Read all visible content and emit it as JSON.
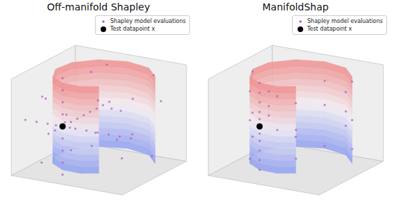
{
  "chart_data": [
    {
      "type": "scatter3d",
      "title": "Off-manifold Shapley",
      "xlim": [
        -1,
        1
      ],
      "ylim": [
        -1,
        1
      ],
      "zlim": [
        -1,
        1
      ],
      "tick_labels": false,
      "legend": "upper right",
      "manifold": {
        "curve": [
          [
            0.25,
            -0.43
          ],
          [
            0,
            -0.58
          ],
          [
            -0.33,
            -0.56
          ],
          [
            -0.62,
            -0.36
          ],
          [
            -0.78,
            0
          ],
          [
            -0.73,
            0.42
          ],
          [
            -0.44,
            0.76
          ],
          [
            0,
            0.9
          ],
          [
            0.45,
            0.78
          ],
          [
            0.76,
            0.44
          ]
        ],
        "height": [
          -0.9,
          0.9
        ],
        "colors": [
          "#8c9cf0",
          "#f2eef2",
          "#ee8c8c"
        ]
      },
      "series": [
        {
          "name": "Shapley model evaluations",
          "color": "#b35cc4",
          "marker": "circle",
          "points": [
            [
              -1,
              -0.56,
              0
            ],
            [
              -0.8,
              -0.56,
              0
            ],
            [
              -0.6,
              -0.56,
              0
            ],
            [
              -0.45,
              -0.56,
              0
            ],
            [
              -0.2,
              -0.56,
              0
            ],
            [
              -0.1,
              -0.56,
              0
            ],
            [
              0.1,
              -0.56,
              0
            ],
            [
              0.3,
              -0.56,
              0
            ],
            [
              0.5,
              -0.56,
              0
            ],
            [
              0.7,
              -0.56,
              0
            ],
            [
              0.9,
              -0.56,
              0
            ],
            [
              -0.33,
              -1,
              0
            ],
            [
              -0.33,
              -0.8,
              0
            ],
            [
              -0.33,
              -0.3,
              0
            ],
            [
              -0.33,
              -0.1,
              0
            ],
            [
              -0.33,
              0.1,
              0
            ],
            [
              -0.33,
              0.3,
              0
            ],
            [
              -0.33,
              0.5,
              0
            ],
            [
              -0.33,
              0.7,
              0
            ],
            [
              -0.33,
              0.9,
              0
            ],
            [
              -0.33,
              -0.56,
              -1
            ],
            [
              -0.33,
              -0.56,
              -0.75
            ],
            [
              -0.33,
              -0.56,
              -0.5
            ],
            [
              -0.33,
              -0.56,
              -0.25
            ],
            [
              -0.33,
              -0.56,
              0.25
            ],
            [
              -0.33,
              -0.56,
              0.5
            ],
            [
              -0.33,
              -0.56,
              0.75
            ],
            [
              -0.33,
              -0.56,
              1
            ],
            [
              0.8,
              -0.7,
              0.6
            ],
            [
              -0.9,
              0.5,
              -0.4
            ],
            [
              0.3,
              0.2,
              -0.8
            ],
            [
              -0.5,
              -0.9,
              0.7
            ],
            [
              0.6,
              0.9,
              0.2
            ],
            [
              -0.2,
              0.6,
              0.9
            ],
            [
              0.9,
              0.1,
              -0.6
            ],
            [
              -0.8,
              -0.4,
              -0.9
            ],
            [
              0.1,
              -0.2,
              0.5
            ],
            [
              0.5,
              -0.3,
              -0.2
            ],
            [
              -0.6,
              0.8,
              0.6
            ],
            [
              0.2,
              0.7,
              -0.5
            ],
            [
              -0.9,
              -0.1,
              0.3
            ],
            [
              0.7,
              0.5,
              0.9
            ],
            [
              -0.3,
              0.3,
              -0.7
            ],
            [
              0.4,
              -0.8,
              0.1
            ],
            [
              -0.7,
              0.2,
              -0.1
            ],
            [
              0.9,
              -0.5,
              0.8
            ],
            [
              -0.1,
              -0.7,
              -0.4
            ],
            [
              0,
              0.4,
              0.1
            ]
          ]
        },
        {
          "name": "Test datapoint x",
          "color": "#000000",
          "marker": "circle",
          "points": [
            [
              -0.33,
              -0.56,
              0
            ]
          ]
        }
      ]
    },
    {
      "type": "scatter3d",
      "title": "ManifoldShap",
      "xlim": [
        -1,
        1
      ],
      "ylim": [
        -1,
        1
      ],
      "zlim": [
        -1,
        1
      ],
      "tick_labels": false,
      "legend": "upper right",
      "manifold": {
        "curve": [
          [
            0.25,
            -0.43
          ],
          [
            0,
            -0.58
          ],
          [
            -0.33,
            -0.56
          ],
          [
            -0.62,
            -0.36
          ],
          [
            -0.78,
            0
          ],
          [
            -0.73,
            0.42
          ],
          [
            -0.44,
            0.76
          ],
          [
            0,
            0.9
          ],
          [
            0.45,
            0.78
          ],
          [
            0.76,
            0.44
          ]
        ],
        "height": [
          -0.9,
          0.9
        ],
        "colors": [
          "#8c9cf0",
          "#f2eef2",
          "#ee8c8c"
        ]
      },
      "series": [
        {
          "name": "Shapley model evaluations",
          "color": "#b35cc4",
          "marker": "circle",
          "points": [
            [
              -0.33,
              -0.56,
              -0.9
            ],
            [
              -0.33,
              -0.56,
              -0.7
            ],
            [
              -0.33,
              -0.56,
              -0.5
            ],
            [
              -0.33,
              -0.56,
              -0.3
            ],
            [
              -0.33,
              -0.56,
              -0.15
            ],
            [
              -0.33,
              -0.56,
              0.15
            ],
            [
              -0.33,
              -0.56,
              0.3
            ],
            [
              -0.33,
              -0.56,
              0.5
            ],
            [
              -0.33,
              -0.56,
              0.7
            ],
            [
              -0.33,
              -0.56,
              0.9
            ],
            [
              0.25,
              -0.43,
              0
            ],
            [
              0,
              -0.58,
              0
            ],
            [
              -0.62,
              -0.36,
              0
            ],
            [
              -0.78,
              0,
              0
            ],
            [
              -0.73,
              0.42,
              0
            ],
            [
              -0.44,
              0.76,
              0
            ],
            [
              0,
              0.9,
              0
            ],
            [
              0.45,
              0.78,
              0
            ],
            [
              0.76,
              0.44,
              0
            ],
            [
              -0.62,
              -0.36,
              0.6
            ],
            [
              -0.78,
              0,
              -0.5
            ],
            [
              -0.73,
              0.42,
              0.3
            ],
            [
              -0.44,
              0.76,
              -0.7
            ],
            [
              0,
              0.9,
              0.5
            ],
            [
              0.45,
              0.78,
              -0.3
            ],
            [
              0.76,
              0.44,
              0.8
            ],
            [
              0.25,
              -0.43,
              -0.6
            ],
            [
              0,
              -0.58,
              0.7
            ],
            [
              -0.62,
              -0.36,
              -0.8
            ],
            [
              -0.78,
              0,
              0.85
            ],
            [
              -0.73,
              0.42,
              -0.2
            ],
            [
              0,
              0.9,
              -0.85
            ],
            [
              0.45,
              0.78,
              0.4
            ],
            [
              0.76,
              0.44,
              -0.6
            ]
          ]
        },
        {
          "name": "Test datapoint x",
          "color": "#000000",
          "marker": "circle",
          "points": [
            [
              -0.33,
              -0.56,
              0
            ]
          ]
        }
      ]
    }
  ]
}
